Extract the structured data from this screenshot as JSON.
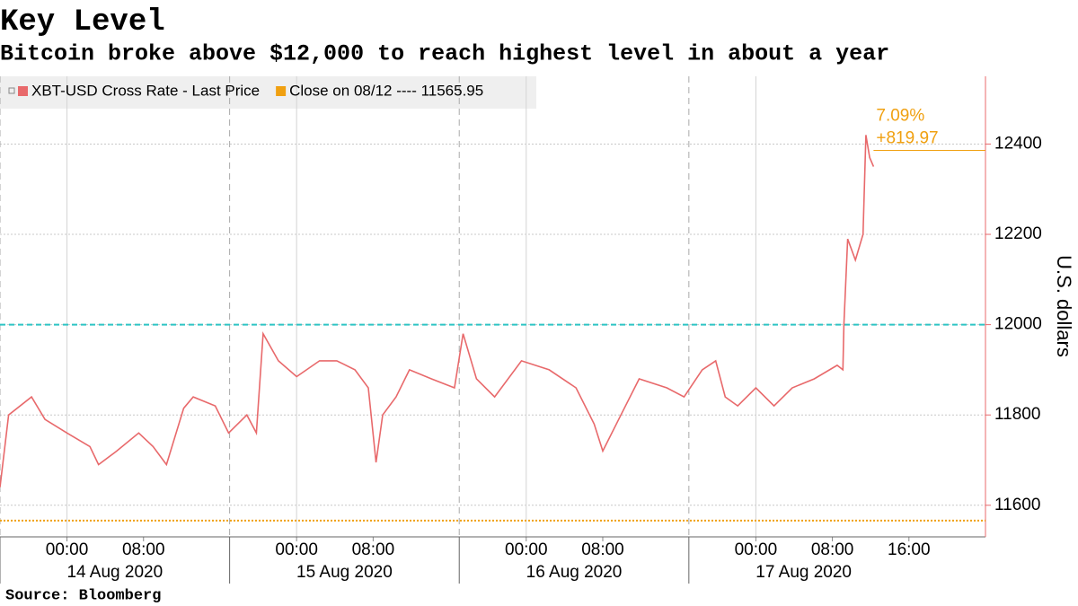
{
  "chart_data": {
    "type": "line",
    "title": "Key Level",
    "subtitle": "Bitcoin broke above $12,000 to reach highest level in about a year",
    "source": "Source: Bloomberg",
    "y_label": "U.S. dollars",
    "xlim": [
      -7,
      96
    ],
    "ylim": [
      11530,
      12550
    ],
    "yticks": [
      11600,
      11800,
      12000,
      12200,
      12400
    ],
    "xticks": [
      {
        "value": 0,
        "label": "00:00"
      },
      {
        "value": 8,
        "label": "08:00"
      },
      {
        "value": 24,
        "label": "00:00"
      },
      {
        "value": 32,
        "label": "08:00"
      },
      {
        "value": 48,
        "label": "00:00"
      },
      {
        "value": 56,
        "label": "08:00"
      },
      {
        "value": 72,
        "label": "00:00"
      },
      {
        "value": 80,
        "label": "08:00"
      },
      {
        "value": 88,
        "label": "16:00"
      }
    ],
    "day_separators": [
      -7,
      17,
      41,
      65
    ],
    "day_labels": [
      "14 Aug 2020",
      "15 Aug 2020",
      "16 Aug 2020",
      "17 Aug 2020"
    ],
    "grid": true,
    "reference_line": {
      "value": 12000,
      "color": "#2ec4c4"
    },
    "series": [
      {
        "name": "XBT-USD Cross Rate - Last Price",
        "color": "#e8696b",
        "x": [
          -7,
          -6.1,
          -3.7,
          -2.3,
          0,
          2.4,
          3.3,
          5.2,
          7.5,
          9,
          10.4,
          12.2,
          13.2,
          15.5,
          16.9,
          18.8,
          19.8,
          20.5,
          22.1,
          24,
          26.4,
          28.2,
          30.1,
          31.5,
          32.3,
          33,
          34.4,
          35.8,
          38.1,
          40.5,
          41.4,
          42.8,
          44.7,
          47.5,
          50.4,
          53.2,
          55.1,
          56,
          57.9,
          59.8,
          62.7,
          64.5,
          66.4,
          67.8,
          68.8,
          70.1,
          72,
          73.9,
          75.8,
          78.1,
          80.5,
          81.1,
          81.2,
          81.6,
          82.4,
          83.2,
          83.5,
          83.9,
          84.3
        ],
        "values": [
          11640,
          11800,
          11840,
          11790,
          11760,
          11730,
          11690,
          11720,
          11760,
          11730,
          11690,
          11815,
          11840,
          11820,
          11760,
          11800,
          11760,
          11980,
          11920,
          11885,
          11920,
          11920,
          11900,
          11860,
          11695,
          11800,
          11840,
          11900,
          11880,
          11860,
          11980,
          11880,
          11840,
          11920,
          11900,
          11860,
          11780,
          11720,
          11800,
          11880,
          11860,
          11840,
          11900,
          11920,
          11840,
          11820,
          11860,
          11820,
          11860,
          11880,
          11910,
          11900,
          12000,
          12190,
          12143,
          12200,
          12420,
          12370,
          12350
        ]
      },
      {
        "name": "Close on 08/12 ---- 11565.95",
        "color": "#f0a010",
        "value": 11565.95
      }
    ],
    "change": {
      "value": 819.97,
      "label": "+819.97"
    },
    "change_pct": {
      "value": 7.09,
      "label": "7.09%"
    }
  }
}
